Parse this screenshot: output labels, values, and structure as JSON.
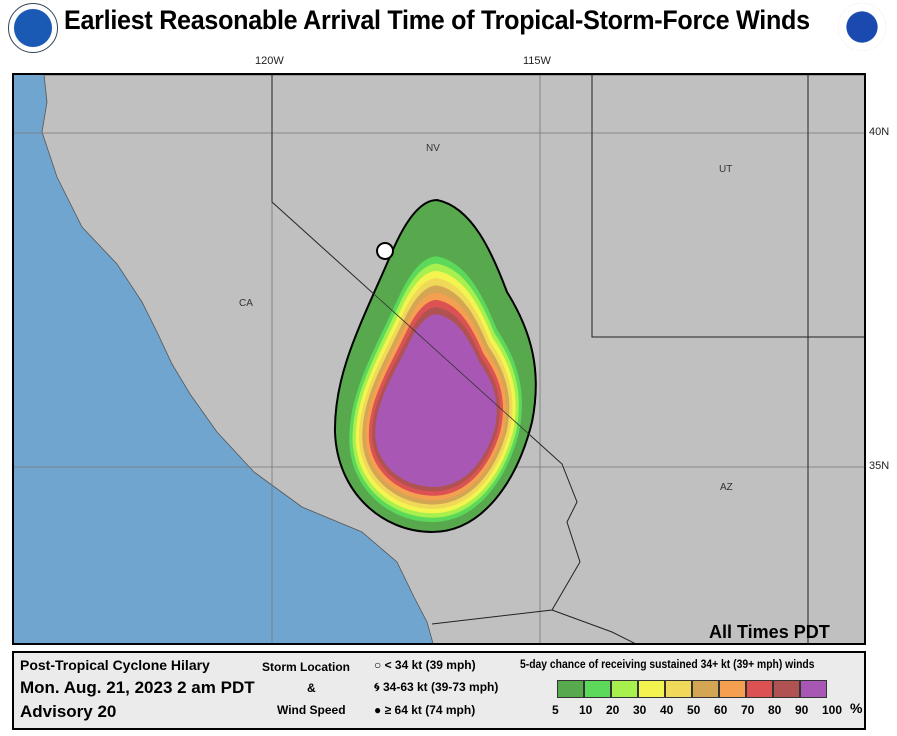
{
  "header": {
    "title": "Earliest Reasonable Arrival Time of Tropical-Storm-Force Winds",
    "left_logo": "NOAA",
    "right_logo": "NATIONAL WEATHER SERVICE"
  },
  "map": {
    "lon_labels": [
      "120W",
      "115W"
    ],
    "lat_labels": [
      "40N",
      "35N"
    ],
    "state_labels": {
      "nv": "NV",
      "ut": "UT",
      "ca": "CA",
      "az": "AZ"
    },
    "times_note": "All Times PDT",
    "colors": {
      "land": "#c0c0c0",
      "ocean": "#6fa5cf",
      "border": "#000000"
    }
  },
  "legend": {
    "storm_name": "Post-Tropical Cyclone Hilary",
    "date": "Mon. Aug. 21, 2023  2 am PDT",
    "advisory": "Advisory 20",
    "storm_location_label": "Storm Location",
    "amp": "&",
    "wind_speed_label": "Wind Speed",
    "symbols": [
      {
        "icon": "open-circle-icon",
        "label": "< 34 kt (39 mph)"
      },
      {
        "icon": "tropical-storm-icon",
        "label": "34-63 kt (39-73 mph)"
      },
      {
        "icon": "hurricane-icon",
        "label": "≥ 64 kt (74 mph)"
      }
    ],
    "scale_title": "5-day chance of receiving sustained 34+ kt (39+ mph) winds",
    "scale_labels": [
      "5",
      "10",
      "20",
      "30",
      "40",
      "50",
      "60",
      "70",
      "80",
      "90",
      "100"
    ],
    "percent": "%",
    "scale_colors": [
      "#58a84e",
      "#5cd85a",
      "#a8f04e",
      "#f4f450",
      "#f0d858",
      "#d4a654",
      "#f4a050",
      "#dc5252",
      "#b05252",
      "#a858b4"
    ]
  }
}
